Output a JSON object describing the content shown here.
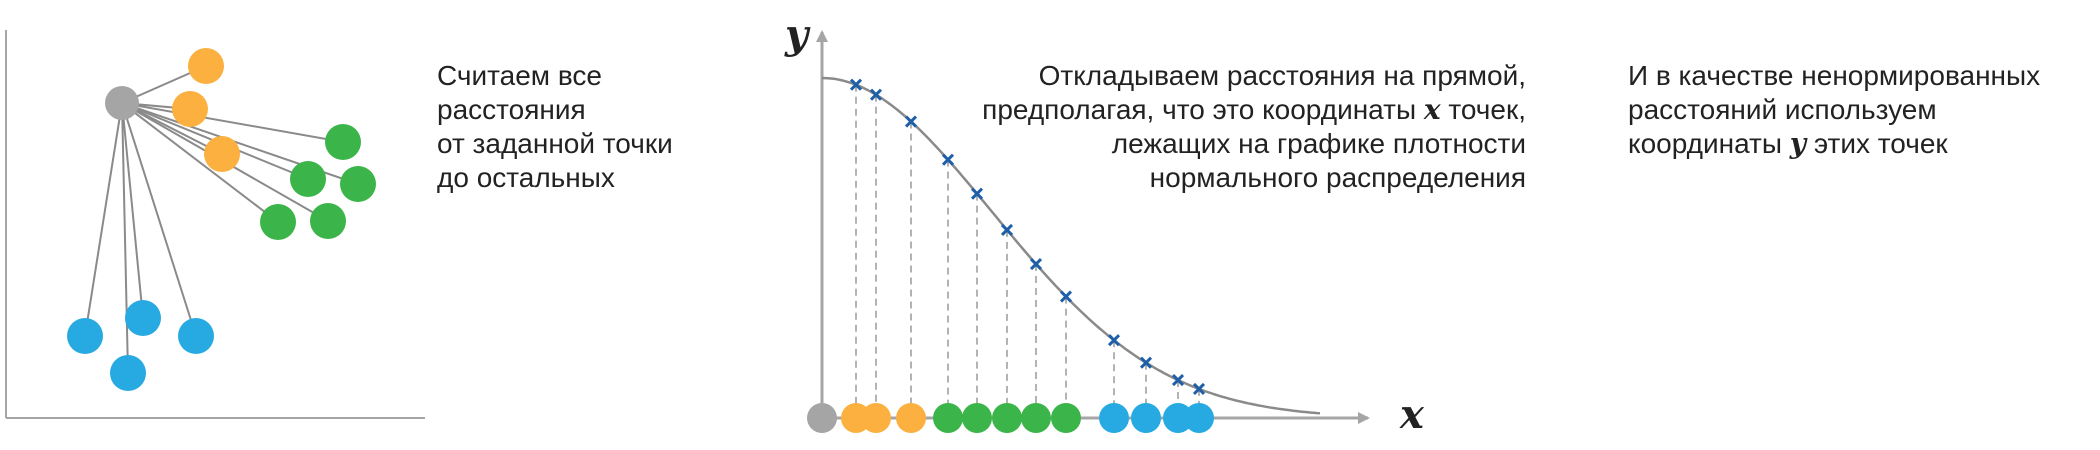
{
  "captions": {
    "left": {
      "lines": [
        "Считаем все",
        "расстояния",
        "от заданной точки",
        "до остальных"
      ]
    },
    "middle": {
      "line1": "Откладываем расстояния на прямой,",
      "line2_before": "предполагая, что это координаты",
      "line2_var": "x",
      "line2_after": "точек,",
      "line3": "лежащих на графике плотности",
      "line4": "нормального распределения"
    },
    "right": {
      "line1": "И в качестве ненормированных",
      "line2": "расстояний используем",
      "line3_before": "координаты",
      "line3_var": "y",
      "line3_after": "этих точек"
    }
  },
  "axes": {
    "x_label": "x",
    "y_label": "y"
  },
  "colors": {
    "gray": "#a5a5a5",
    "orange": "#fcb040",
    "green": "#3bb54a",
    "blue": "#27aae1",
    "cross": "#1f5fa8",
    "line": "#8a8a8a"
  },
  "panel_left": {
    "reference_point": {
      "group": "gray"
    },
    "points": [
      {
        "group": "orange"
      },
      {
        "group": "orange"
      },
      {
        "group": "orange"
      },
      {
        "group": "green"
      },
      {
        "group": "green"
      },
      {
        "group": "green"
      },
      {
        "group": "green"
      },
      {
        "group": "green"
      },
      {
        "group": "blue"
      },
      {
        "group": "blue"
      },
      {
        "group": "blue"
      },
      {
        "group": "blue"
      }
    ]
  },
  "panel_right": {
    "axis_points": [
      "gray",
      "orange",
      "orange",
      "orange",
      "green",
      "green",
      "green",
      "green",
      "green",
      "blue",
      "blue",
      "blue",
      "blue"
    ]
  }
}
